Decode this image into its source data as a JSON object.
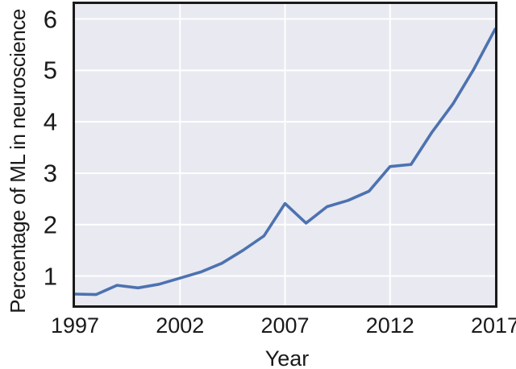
{
  "figure": {
    "background": "#ffffff",
    "plot_background": "#E9E9F1",
    "grid_color": "#ffffff",
    "axis_border_color": "#1a1a1a",
    "text_color": "#1a1a1a"
  },
  "chart_data": {
    "type": "line",
    "title": "",
    "xlabel": "Year",
    "ylabel": "Percentage of ML in neuroscience",
    "x": [
      1997,
      1998,
      1999,
      2000,
      2001,
      2002,
      2003,
      2004,
      2005,
      2006,
      2007,
      2008,
      2009,
      2010,
      2011,
      2012,
      2013,
      2014,
      2015,
      2016,
      2017
    ],
    "series": [
      {
        "name": "Percentage of ML in neuroscience",
        "color": "#4C72B0",
        "values": [
          0.65,
          0.64,
          0.82,
          0.77,
          0.84,
          0.96,
          1.08,
          1.25,
          1.5,
          1.78,
          2.41,
          2.03,
          2.35,
          2.47,
          2.65,
          3.13,
          3.17,
          3.8,
          4.35,
          5.03,
          5.8
        ]
      }
    ],
    "xticks": [
      1997,
      2002,
      2007,
      2012,
      2017
    ],
    "yticks": [
      1,
      2,
      3,
      4,
      5,
      6
    ],
    "grid_x": [
      2002,
      2007,
      2012
    ],
    "xlim": [
      1997,
      2017
    ],
    "ylim": [
      0.43,
      6.29
    ],
    "grid": true,
    "legend": "none"
  }
}
